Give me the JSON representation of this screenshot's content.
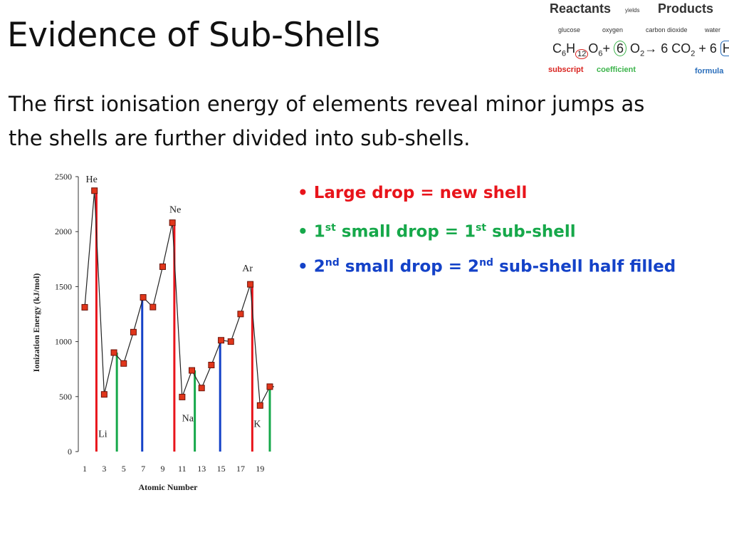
{
  "slide": {
    "title": "Evidence of Sub-Shells",
    "subtitle_line1": "The first ionisation energy of elements reveal minor jumps as",
    "subtitle_line2": "the shells are further divided into sub-shells."
  },
  "equation": {
    "reactants": "Reactants",
    "yields": "yields",
    "products": "Products",
    "labels": [
      "glucose",
      "oxygen",
      "carbon dioxide",
      "water"
    ],
    "subscript_note": "subscript",
    "coefficient_note": "coefficient",
    "formula_note": "formula",
    "colors": {
      "subscript": "#d9231f",
      "coefficient": "#3cb44b",
      "formula": "#2a6ebb"
    }
  },
  "bullets": [
    {
      "pre": "Large drop = new shell",
      "sup1": "",
      "mid": "",
      "sup2": "",
      "post": "",
      "color": "#e8141b"
    },
    {
      "pre": "1",
      "sup1": "st",
      "mid": " small drop = 1",
      "sup2": "st",
      "post": " sub-shell",
      "color": "#16a84a"
    },
    {
      "pre": "2",
      "sup1": "nd",
      "mid": " small drop = 2",
      "sup2": "nd",
      "post": " sub-shell half filled",
      "color": "#1442c8"
    }
  ],
  "chart_data": {
    "type": "line",
    "title": "",
    "xlabel": "Atomic Number",
    "ylabel": "Ionization Energy (kJ/mol)",
    "xlim": [
      1,
      20
    ],
    "ylim": [
      0,
      2500
    ],
    "x_ticks": [
      "1",
      "3",
      "5",
      "7",
      "9",
      "11",
      "13",
      "15",
      "17",
      "19",
      "2"
    ],
    "y_ticks": [
      "0",
      "500",
      "1000",
      "1500",
      "2000",
      "2500"
    ],
    "series": [
      {
        "values": [
          {
            "x": 1,
            "y": 1312
          },
          {
            "x": 2,
            "y": 2372
          },
          {
            "x": 3,
            "y": 520
          },
          {
            "x": 4,
            "y": 900
          },
          {
            "x": 5,
            "y": 801
          },
          {
            "x": 6,
            "y": 1086
          },
          {
            "x": 7,
            "y": 1402
          },
          {
            "x": 8,
            "y": 1314
          },
          {
            "x": 9,
            "y": 1681
          },
          {
            "x": 10,
            "y": 2081
          },
          {
            "x": 11,
            "y": 496
          },
          {
            "x": 12,
            "y": 738
          },
          {
            "x": 13,
            "y": 578
          },
          {
            "x": 14,
            "y": 787
          },
          {
            "x": 15,
            "y": 1012
          },
          {
            "x": 16,
            "y": 1000
          },
          {
            "x": 17,
            "y": 1251
          },
          {
            "x": 18,
            "y": 1521
          },
          {
            "x": 19,
            "y": 419
          },
          {
            "x": 20,
            "y": 590
          }
        ]
      }
    ],
    "element_labels": [
      {
        "text": "He",
        "x": 2,
        "y": 2372
      },
      {
        "text": "Ne",
        "x": 10,
        "y": 2081
      },
      {
        "text": "Ar",
        "x": 18,
        "y": 1521
      },
      {
        "text": "Li",
        "x": 3,
        "y": 520
      },
      {
        "text": "Na",
        "x": 11,
        "y": 496
      },
      {
        "text": "K",
        "x": 19,
        "y": 419
      }
    ],
    "markers": [
      {
        "x": 2.2,
        "y": 2372,
        "kind": "new shell",
        "color": "#e8141b"
      },
      {
        "x": 10.2,
        "y": 2081,
        "kind": "new shell",
        "color": "#e8141b"
      },
      {
        "x": 18.2,
        "y": 1521,
        "kind": "new shell",
        "color": "#e8141b"
      },
      {
        "x": 4.3,
        "y": 900,
        "kind": "1st sub-shell",
        "color": "#16a84a"
      },
      {
        "x": 12.3,
        "y": 738,
        "kind": "1st sub-shell",
        "color": "#16a84a"
      },
      {
        "x": 20,
        "y": 590,
        "kind": "1st sub-shell",
        "color": "#16a84a"
      },
      {
        "x": 6.9,
        "y": 1402,
        "kind": "2nd sub-shell half filled",
        "color": "#1442c8"
      },
      {
        "x": 14.9,
        "y": 1012,
        "kind": "2nd sub-shell half filled",
        "color": "#1442c8"
      }
    ],
    "grid": false
  }
}
